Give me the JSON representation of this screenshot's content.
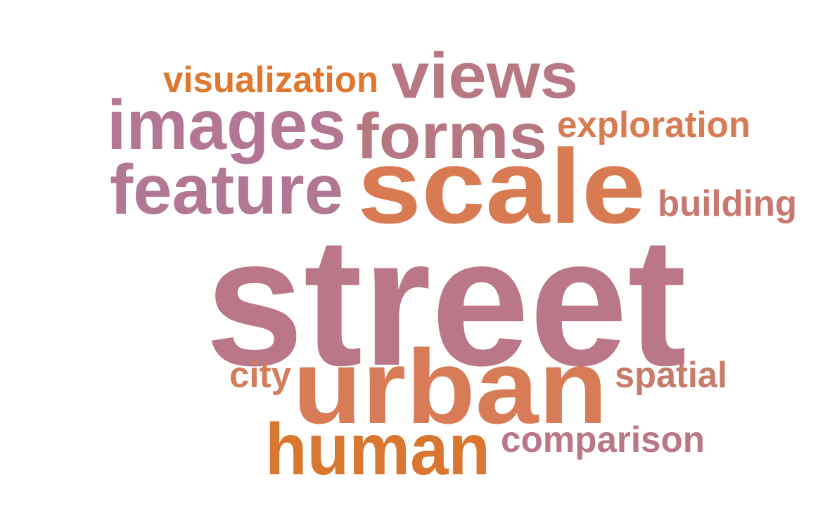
{
  "word_cloud": {
    "words": [
      {
        "id": "street",
        "text": "street",
        "color": "#b97787"
      },
      {
        "id": "urban",
        "text": "urban",
        "color": "#d77c56"
      },
      {
        "id": "scale",
        "text": "scale",
        "color": "#d97b52"
      },
      {
        "id": "human",
        "text": "human",
        "color": "#d9762f"
      },
      {
        "id": "images",
        "text": "images",
        "color": "#b37793"
      },
      {
        "id": "views",
        "text": "views",
        "color": "#b77884"
      },
      {
        "id": "forms",
        "text": "forms",
        "color": "#b57882"
      },
      {
        "id": "feature",
        "text": "feature",
        "color": "#b27793"
      },
      {
        "id": "visualization",
        "text": "visualization",
        "color": "#e0772e"
      },
      {
        "id": "exploration",
        "text": "exploration",
        "color": "#d97b52"
      },
      {
        "id": "building",
        "text": "building",
        "color": "#c8786f"
      },
      {
        "id": "city",
        "text": "city",
        "color": "#d47d5d"
      },
      {
        "id": "spatial",
        "text": "spatial",
        "color": "#c87b68"
      },
      {
        "id": "comparison",
        "text": "comparison",
        "color": "#b97788"
      }
    ]
  }
}
